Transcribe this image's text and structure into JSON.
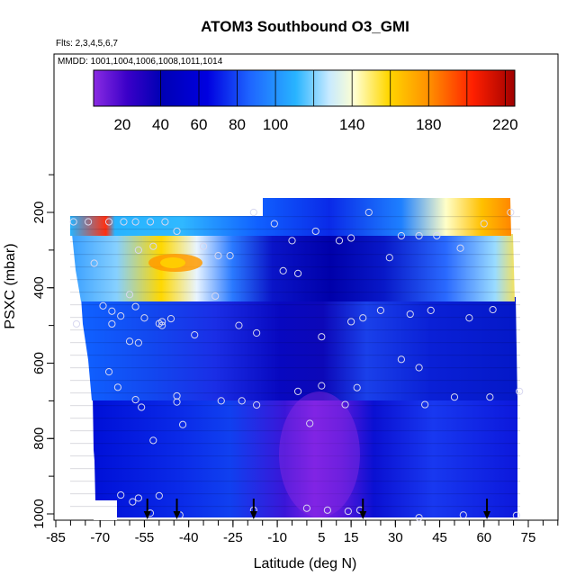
{
  "chart_data": {
    "type": "heatmap",
    "title": "ATOM3 Southbound O3_GMI",
    "subtitle_flights": "Flts: 2,3,4,5,6,7",
    "subtitle_dates": "MMDD: 1001,1004,1006,1008,1011,1014",
    "xlabel": "Latitude (deg N)",
    "ylabel": "PSXC (mbar)",
    "x_ticks": [
      "-85",
      "-70",
      "-55",
      "-40",
      "-25",
      "-10",
      "5",
      "15",
      "30",
      "45",
      "60",
      "75"
    ],
    "x_tick_values": [
      -85,
      -70,
      -55,
      -40,
      -25,
      -10,
      5,
      15,
      30,
      45,
      60,
      75
    ],
    "y_ticks": [
      "200",
      "400",
      "600",
      "800",
      "1000"
    ],
    "y_tick_values": [
      200,
      400,
      600,
      800,
      1000
    ],
    "xlim": [
      -85,
      85
    ],
    "ylim": [
      1020,
      0
    ],
    "colorbar": {
      "labels": [
        "20",
        "40",
        "60",
        "80",
        "100",
        "140",
        "180",
        "220"
      ],
      "label_values": [
        20,
        40,
        60,
        80,
        100,
        140,
        180,
        220
      ],
      "range": [
        5,
        225
      ],
      "colors": [
        "#8a2be2",
        "#0000b4",
        "#0000e0",
        "#1e64ff",
        "#28b4ff",
        "#c8eaff",
        "#ffffc8",
        "#ffd700",
        "#ff8c00",
        "#ff2000",
        "#a00000"
      ]
    },
    "arrows_x": [
      -54,
      -44,
      -18,
      19,
      61
    ],
    "profile_points": [
      [
        -79,
        225
      ],
      [
        -74,
        225
      ],
      [
        -67,
        225
      ],
      [
        -62,
        225
      ],
      [
        -58,
        225
      ],
      [
        -53,
        225
      ],
      [
        -48,
        225
      ],
      [
        -44,
        250
      ],
      [
        -35,
        290
      ],
      [
        -30,
        315
      ],
      [
        -26,
        315
      ],
      [
        -18,
        200
      ],
      [
        -11,
        230
      ],
      [
        -5,
        275
      ],
      [
        3,
        250
      ],
      [
        11,
        275
      ],
      [
        15,
        268
      ],
      [
        21,
        200
      ],
      [
        28,
        320
      ],
      [
        32,
        262
      ],
      [
        38,
        262
      ],
      [
        44,
        262
      ],
      [
        52,
        295
      ],
      [
        60,
        230
      ],
      [
        69,
        200
      ],
      [
        -72,
        335
      ],
      [
        -57,
        300
      ],
      [
        -52,
        290
      ],
      [
        -60,
        418
      ],
      [
        -8,
        355
      ],
      [
        -3,
        362
      ],
      [
        -69,
        448
      ],
      [
        -66,
        462
      ],
      [
        -63,
        475
      ],
      [
        -58,
        450
      ],
      [
        -55,
        480
      ],
      [
        -50,
        495
      ],
      [
        -49,
        490
      ],
      [
        -46,
        482
      ],
      [
        -31,
        422
      ],
      [
        -23,
        500
      ],
      [
        -78,
        496
      ],
      [
        -66,
        496
      ],
      [
        -49,
        500
      ],
      [
        -38,
        525
      ],
      [
        -17,
        520
      ],
      [
        5,
        530
      ],
      [
        15,
        490
      ],
      [
        19,
        480
      ],
      [
        25,
        460
      ],
      [
        35,
        470
      ],
      [
        42,
        460
      ],
      [
        55,
        480
      ],
      [
        63,
        458
      ],
      [
        -60,
        542
      ],
      [
        -57,
        546
      ],
      [
        -67,
        623
      ],
      [
        -64,
        664
      ],
      [
        -58,
        697
      ],
      [
        -56,
        717
      ],
      [
        -44,
        687
      ],
      [
        -44,
        703
      ],
      [
        -29,
        700
      ],
      [
        -22,
        700
      ],
      [
        -17,
        711
      ],
      [
        -3,
        675
      ],
      [
        5,
        660
      ],
      [
        13,
        710
      ],
      [
        17,
        665
      ],
      [
        32,
        590
      ],
      [
        38,
        612
      ],
      [
        40,
        710
      ],
      [
        50,
        690
      ],
      [
        62,
        690
      ],
      [
        72,
        675
      ],
      [
        -42,
        763
      ],
      [
        -52,
        805
      ],
      [
        1,
        760
      ],
      [
        -63,
        950
      ],
      [
        -59,
        968
      ],
      [
        -57,
        958
      ],
      [
        -50,
        952
      ],
      [
        -53,
        998
      ],
      [
        -43,
        1003
      ],
      [
        -18,
        990
      ],
      [
        0,
        985
      ],
      [
        7,
        990
      ],
      [
        14,
        993
      ],
      [
        18,
        990
      ],
      [
        38,
        1010
      ],
      [
        53,
        1003
      ],
      [
        71,
        1004
      ]
    ]
  }
}
